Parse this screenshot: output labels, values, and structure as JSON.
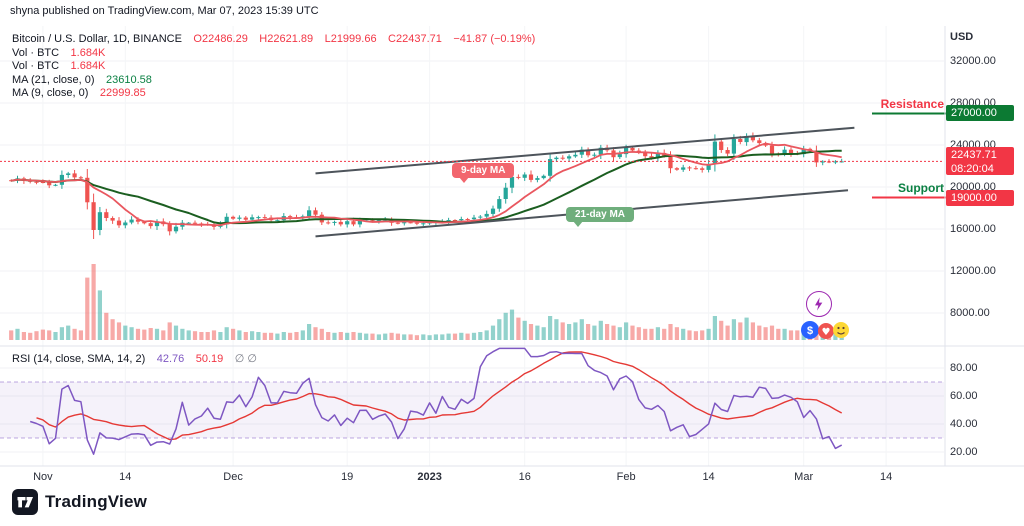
{
  "header": {
    "attribution": "shyna published on TradingView.com, Mar 07, 2023 15:39 UTC"
  },
  "legend": {
    "symbol": "Bitcoin / U.S. Dollar, 1D, BINANCE",
    "open": "O22486.29",
    "high": "H22621.89",
    "low": "L21999.66",
    "close": "C22437.71",
    "change": "−41.87 (−0.19%)",
    "vol_label": "Vol · BTC",
    "vol_value": "1.684K",
    "ma21_label": "MA (21, close, 0)",
    "ma21_value": "23610.58",
    "ma9_label": "MA (9, close, 0)",
    "ma9_value": "22999.85"
  },
  "rsi_legend": {
    "label": "RSI (14, close, SMA, 14, 2)",
    "rsi_value": "42.76",
    "sma_value": "50.19",
    "extra": "∅  ∅"
  },
  "axes": {
    "currency": "USD",
    "price_ticks": [
      "32000.00",
      "28000.00",
      "24000.00",
      "20000.00",
      "16000.00",
      "12000.00",
      "8000.00"
    ],
    "price_tick_values": [
      32000,
      28000,
      24000,
      20000,
      16000,
      12000,
      8000
    ],
    "rsi_ticks": [
      "80.00",
      "60.00",
      "40.00",
      "20.00"
    ],
    "rsi_tick_values": [
      80,
      60,
      40,
      20
    ],
    "time_ticks": [
      {
        "label": "Nov",
        "i": 5,
        "bold": false
      },
      {
        "label": "14",
        "i": 18,
        "bold": false
      },
      {
        "label": "Dec",
        "i": 35,
        "bold": false
      },
      {
        "label": "19",
        "i": 53,
        "bold": false
      },
      {
        "label": "2023",
        "i": 66,
        "bold": true
      },
      {
        "label": "16",
        "i": 81,
        "bold": false
      },
      {
        "label": "Feb",
        "i": 97,
        "bold": false
      },
      {
        "label": "14",
        "i": 110,
        "bold": false
      },
      {
        "label": "Mar",
        "i": 125,
        "bold": false
      },
      {
        "label": "14",
        "i": 138,
        "bold": false
      }
    ]
  },
  "levels": {
    "resistance": {
      "label": "Resistance",
      "tag": "27000.00"
    },
    "support": {
      "label": "Support",
      "tag": "19000.00"
    },
    "last": {
      "tag": "22437.71",
      "countdown": "08:20:04"
    }
  },
  "annotations": {
    "ma9_label": "9-day MA",
    "ma21_label": "21-day MA"
  },
  "footer": {
    "brand": "TradingView"
  },
  "colors": {
    "up": "#26a69a",
    "down": "#ef5350",
    "ma_fast": "#e9575f",
    "ma_slow": "#1b5e20",
    "rsi": "#7e57c2",
    "rsi_sma": "#e53935",
    "accent_red": "#f23645",
    "accent_green": "#0b8043",
    "tag_green_bg": "#0c7a33",
    "tag_red_bg": "#f23645",
    "channel": "#4d545b"
  },
  "chart_data": {
    "type": "candlestick",
    "symbol": "BTCUSD, BINANCE, 1D",
    "start_date": "2022-10-27",
    "interval_days": 1,
    "ylim": [
      7000,
      33000
    ],
    "price_gridlines": [
      32000,
      28000,
      24000,
      20000,
      16000,
      12000,
      8000
    ],
    "closes": [
      20590,
      20820,
      20600,
      20500,
      20480,
      20450,
      20160,
      20210,
      21150,
      21300,
      20920,
      20880,
      18550,
      15900,
      17600,
      17050,
      16800,
      16350,
      16620,
      16900,
      16700,
      16550,
      16270,
      16720,
      16450,
      15780,
      16220,
      16600,
      16600,
      16520,
      16460,
      16440,
      16210,
      16440,
      17160,
      16980,
      17090,
      16890,
      17110,
      17130,
      17090,
      16840,
      16840,
      17230,
      17130,
      17090,
      17210,
      17780,
      17360,
      16630,
      16600,
      16680,
      16440,
      16740,
      16440,
      16820,
      16830,
      16780,
      16840,
      16900,
      16600,
      16550,
      16640,
      16600,
      16540,
      16540,
      16620,
      16670,
      16680,
      16860,
      16840,
      16950,
      16940,
      17090,
      17180,
      17440,
      17940,
      18850,
      19930,
      20960,
      20880,
      21190,
      20680,
      20850,
      21070,
      22660,
      22790,
      22710,
      22920,
      23070,
      23560,
      23020,
      23080,
      23740,
      23490,
      22840,
      23130,
      23720,
      23470,
      23330,
      22930,
      22760,
      23250,
      22960,
      21790,
      21650,
      21870,
      21790,
      21780,
      21630,
      22200,
      24320,
      23520,
      23180,
      24570,
      24280,
      24840,
      24450,
      24180,
      23940,
      23190,
      23160,
      23550,
      23180,
      23140,
      23640,
      23470,
      22350,
      22430,
      22410,
      22430,
      22437.71
    ],
    "volumes": [
      12,
      14,
      10,
      9,
      11,
      13,
      12,
      10,
      16,
      18,
      14,
      12,
      78,
      95,
      62,
      34,
      26,
      22,
      18,
      16,
      14,
      13,
      15,
      14,
      12,
      22,
      18,
      14,
      12,
      11,
      10,
      10,
      12,
      10,
      16,
      14,
      12,
      10,
      11,
      10,
      9,
      9,
      8,
      10,
      9,
      10,
      12,
      20,
      16,
      14,
      10,
      9,
      10,
      9,
      10,
      9,
      8,
      8,
      7,
      8,
      9,
      8,
      7,
      7,
      6,
      7,
      6,
      7,
      7,
      8,
      8,
      9,
      8,
      9,
      10,
      12,
      18,
      26,
      34,
      38,
      28,
      24,
      20,
      18,
      16,
      30,
      26,
      22,
      20,
      22,
      26,
      20,
      18,
      24,
      20,
      18,
      16,
      22,
      18,
      16,
      14,
      14,
      16,
      14,
      20,
      16,
      14,
      12,
      11,
      12,
      14,
      30,
      24,
      18,
      26,
      22,
      28,
      22,
      18,
      16,
      18,
      14,
      14,
      12,
      12,
      14,
      12,
      18,
      12,
      10,
      9,
      8
    ],
    "indicators": {
      "ma_fast": 9,
      "ma_slow": 21,
      "rsi_period": 14,
      "rsi_sma_period": 14
    },
    "levels": {
      "resistance": 27000,
      "support": 19000,
      "last_price": 22437.71
    },
    "channel_upper": {
      "i1": 48,
      "p1": 21300,
      "i2": 133,
      "p2": 25650
    },
    "channel_lower": {
      "i1": 48,
      "p1": 15300,
      "i2": 132,
      "p2": 19700
    },
    "rsi_band": [
      30,
      70
    ],
    "rsi_gridlines": [
      80,
      60,
      40,
      20
    ]
  }
}
